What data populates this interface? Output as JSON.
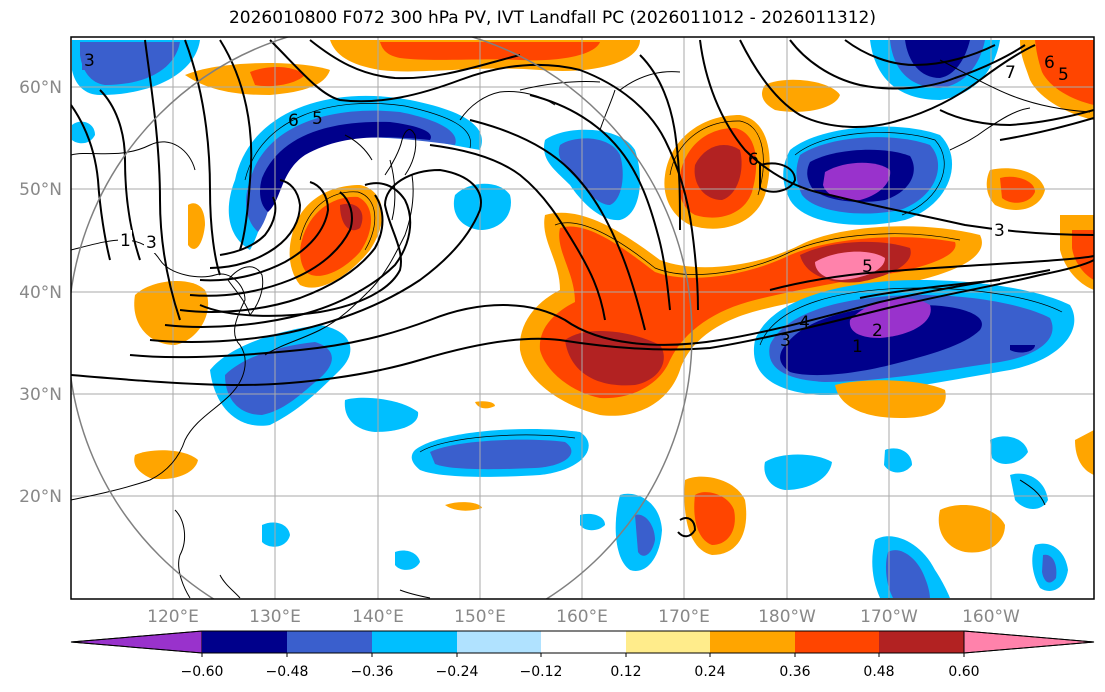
{
  "title": "2026010800 F072 300 hPa PV, IVT Landfall PC (2026011012 - 2026011312)",
  "lat_labels": [
    "60°N",
    "50°N",
    "40°N",
    "30°N",
    "20°N"
  ],
  "lon_labels": [
    "120°E",
    "130°E",
    "140°E",
    "150°E",
    "160°E",
    "170°E",
    "180°W",
    "170°W",
    "160°W"
  ],
  "colorbar": {
    "colors": [
      "#9932cc",
      "#00008b",
      "#3a5fcd",
      "#00bfff",
      "#b0e2ff",
      "#ffffff",
      "#ffec8b",
      "#ffa500",
      "#ff4500",
      "#b22222",
      "#ff82ab"
    ],
    "tick_labels": [
      "−0.60",
      "−0.48",
      "−0.36",
      "−0.24",
      "−0.12",
      "0.12",
      "0.24",
      "0.36",
      "0.48",
      "0.60"
    ]
  },
  "contour_labels": [
    {
      "text": "3"
    },
    {
      "text": "1"
    },
    {
      "text": "3"
    },
    {
      "text": "6"
    },
    {
      "text": "5"
    },
    {
      "text": "7"
    },
    {
      "text": "6"
    },
    {
      "text": "5"
    },
    {
      "text": "6"
    },
    {
      "text": "3"
    },
    {
      "text": "5"
    },
    {
      "text": "4"
    },
    {
      "text": "3"
    },
    {
      "text": "1"
    },
    {
      "text": "2"
    }
  ],
  "colors": {
    "axis_text": "#888888",
    "grid": "#aaaaaa",
    "contour": "#000000"
  }
}
